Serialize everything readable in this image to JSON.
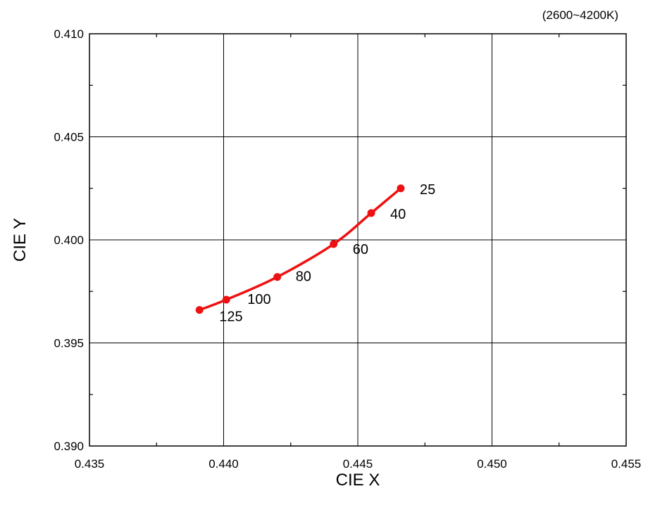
{
  "chart_data": {
    "type": "line",
    "title": "",
    "subtitle": "(2600~4200K)",
    "xlabel": "CIE X",
    "ylabel": "CIE Y",
    "xlim": [
      0.435,
      0.455
    ],
    "ylim": [
      0.39,
      0.41
    ],
    "x_ticks": [
      "0.435",
      "0.440",
      "0.445",
      "0.450",
      "0.455"
    ],
    "y_ticks": [
      "0.390",
      "0.395",
      "0.400",
      "0.405",
      "0.410"
    ],
    "grid": true,
    "line_color": "#ee1111",
    "series": [
      {
        "points": [
          {
            "x": 0.4391,
            "y": 0.3966,
            "label": "125"
          },
          {
            "x": 0.4401,
            "y": 0.3971,
            "label": "100"
          },
          {
            "x": 0.442,
            "y": 0.3982,
            "label": "80"
          },
          {
            "x": 0.4441,
            "y": 0.3998,
            "label": "60"
          },
          {
            "x": 0.4455,
            "y": 0.4013,
            "label": "40"
          },
          {
            "x": 0.4466,
            "y": 0.4025,
            "label": "25"
          }
        ]
      }
    ]
  }
}
